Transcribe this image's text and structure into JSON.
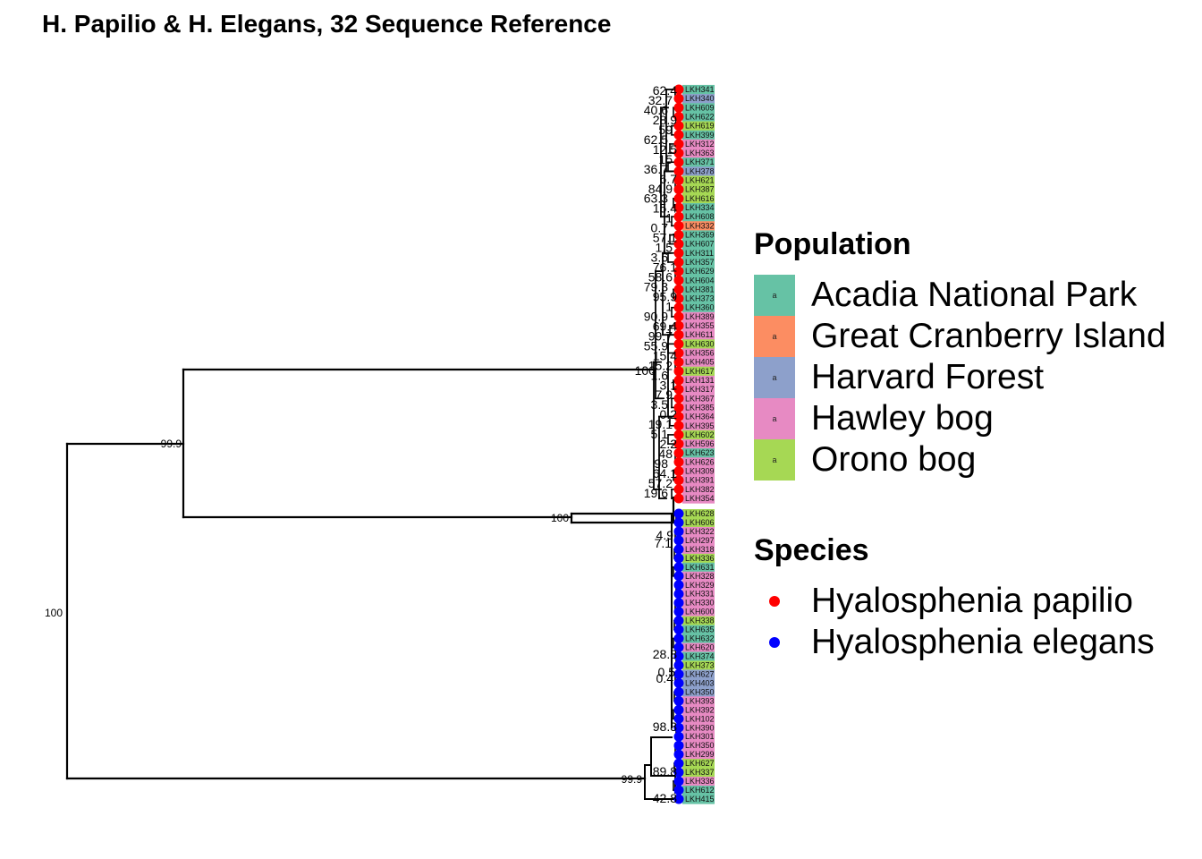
{
  "title": "H. Papilio & H. Elegans, 32 Sequence Reference",
  "colors": {
    "Acadia National Park": "#66C2A5",
    "Great Cranberry Island": "#FC8D62",
    "Harvard Forest": "#8DA0CB",
    "Hawley bog": "#E78AC3",
    "Orono bog": "#A6D854",
    "Hyalosphenia papilio": "#FF0000",
    "Hyalosphenia elegans": "#0000FF"
  },
  "legend_population": {
    "title": "Population",
    "key_glyph": "a",
    "items": [
      "Acadia National Park",
      "Great Cranberry Island",
      "Harvard Forest",
      "Hawley bog",
      "Orono bog"
    ]
  },
  "legend_species": {
    "title": "Species",
    "items": [
      "Hyalosphenia papilio",
      "Hyalosphenia elegans"
    ]
  },
  "tree": {
    "major_bootstrap": [
      "100",
      "99.9",
      "100",
      "100",
      "99.9"
    ],
    "papilio_bootstrap": [
      "62.4",
      "32.7",
      "40.6",
      "28.9",
      "59",
      "62.5",
      "12.5",
      "15",
      "36.7",
      "6.7",
      "84.9",
      "63.3",
      "15.4",
      "1",
      "0.7",
      "57.1",
      "1.5",
      "3.6",
      "76.1",
      "58.6",
      "79.3",
      "95.9",
      "1",
      "90.9",
      "69.4",
      "99.7",
      "55.9",
      "15.4",
      "15.2",
      "1.6",
      "3.1",
      "7.9",
      "3.5",
      "0.2",
      "19.1",
      "5.1",
      "2.2",
      "48",
      "98",
      "64.1",
      "57.2",
      "19.6"
    ],
    "elegans_bootstrap": [
      "4.9",
      "7.1",
      "28.8",
      "0.5",
      "0.4",
      "98.3",
      "89.8",
      "42.8"
    ],
    "papilio_tips": [
      "LKH341",
      "LKH340",
      "LKH609",
      "LKH622",
      "LKH619",
      "LKH399",
      "LKH312",
      "LKH363",
      "LKH371",
      "LKH378",
      "LKH621",
      "LKH387",
      "LKH616",
      "LKH334",
      "LKH608",
      "LKH332",
      "LKH369",
      "LKH607",
      "LKH311",
      "LKH357",
      "LKH629",
      "LKH604",
      "LKH381",
      "LKH373",
      "LKH360",
      "LKH389",
      "LKH355",
      "LKH611",
      "LKH630",
      "LKH356",
      "LKH405",
      "LKH617",
      "LKH131",
      "LKH317",
      "LKH367",
      "LKH385",
      "LKH364",
      "LKH395",
      "LKH602",
      "LKH596",
      "LKH623",
      "LKH626",
      "LKH309",
      "LKH391",
      "LKH382",
      "LKH354"
    ],
    "papilio_pops": [
      "Acadia National Park",
      "Harvard Forest",
      "Acadia National Park",
      "Acadia National Park",
      "Orono bog",
      "Acadia National Park",
      "Hawley bog",
      "Hawley bog",
      "Acadia National Park",
      "Harvard Forest",
      "Orono bog",
      "Orono bog",
      "Orono bog",
      "Acadia National Park",
      "Acadia National Park",
      "Great Cranberry Island",
      "Acadia National Park",
      "Acadia National Park",
      "Acadia National Park",
      "Acadia National Park",
      "Acadia National Park",
      "Acadia National Park",
      "Acadia National Park",
      "Acadia National Park",
      "Acadia National Park",
      "Hawley bog",
      "Hawley bog",
      "Hawley bog",
      "Orono bog",
      "Hawley bog",
      "Hawley bog",
      "Orono bog",
      "Hawley bog",
      "Hawley bog",
      "Hawley bog",
      "Hawley bog",
      "Hawley bog",
      "Hawley bog",
      "Orono bog",
      "Hawley bog",
      "Acadia National Park",
      "Hawley bog",
      "Hawley bog",
      "Hawley bog",
      "Hawley bog",
      "Hawley bog"
    ],
    "elegans_tips": [
      "LKH628",
      "LKH606",
      "LKH322",
      "LKH297",
      "LKH318",
      "LKH336",
      "LKH631",
      "LKH328",
      "LKH329",
      "LKH331",
      "LKH330",
      "LKH600",
      "LKH338",
      "LKH635",
      "LKH632",
      "LKH620",
      "LKH374",
      "LKH373",
      "LKH627",
      "LKH403",
      "LKH350",
      "LKH393",
      "LKH392",
      "LKH102",
      "LKH390",
      "LKH301",
      "LKH350",
      "LKH299",
      "LKH627",
      "LKH337",
      "LKH336",
      "LKH612",
      "LKH415"
    ],
    "elegans_pops": [
      "Orono bog",
      "Orono bog",
      "Hawley bog",
      "Hawley bog",
      "Hawley bog",
      "Orono bog",
      "Acadia National Park",
      "Hawley bog",
      "Hawley bog",
      "Hawley bog",
      "Hawley bog",
      "Hawley bog",
      "Orono bog",
      "Acadia National Park",
      "Acadia National Park",
      "Hawley bog",
      "Acadia National Park",
      "Orono bog",
      "Harvard Forest",
      "Harvard Forest",
      "Harvard Forest",
      "Hawley bog",
      "Hawley bog",
      "Hawley bog",
      "Hawley bog",
      "Hawley bog",
      "Hawley bog",
      "Hawley bog",
      "Orono bog",
      "Orono bog",
      "Hawley bog",
      "Acadia National Park",
      "Acadia National Park"
    ]
  }
}
